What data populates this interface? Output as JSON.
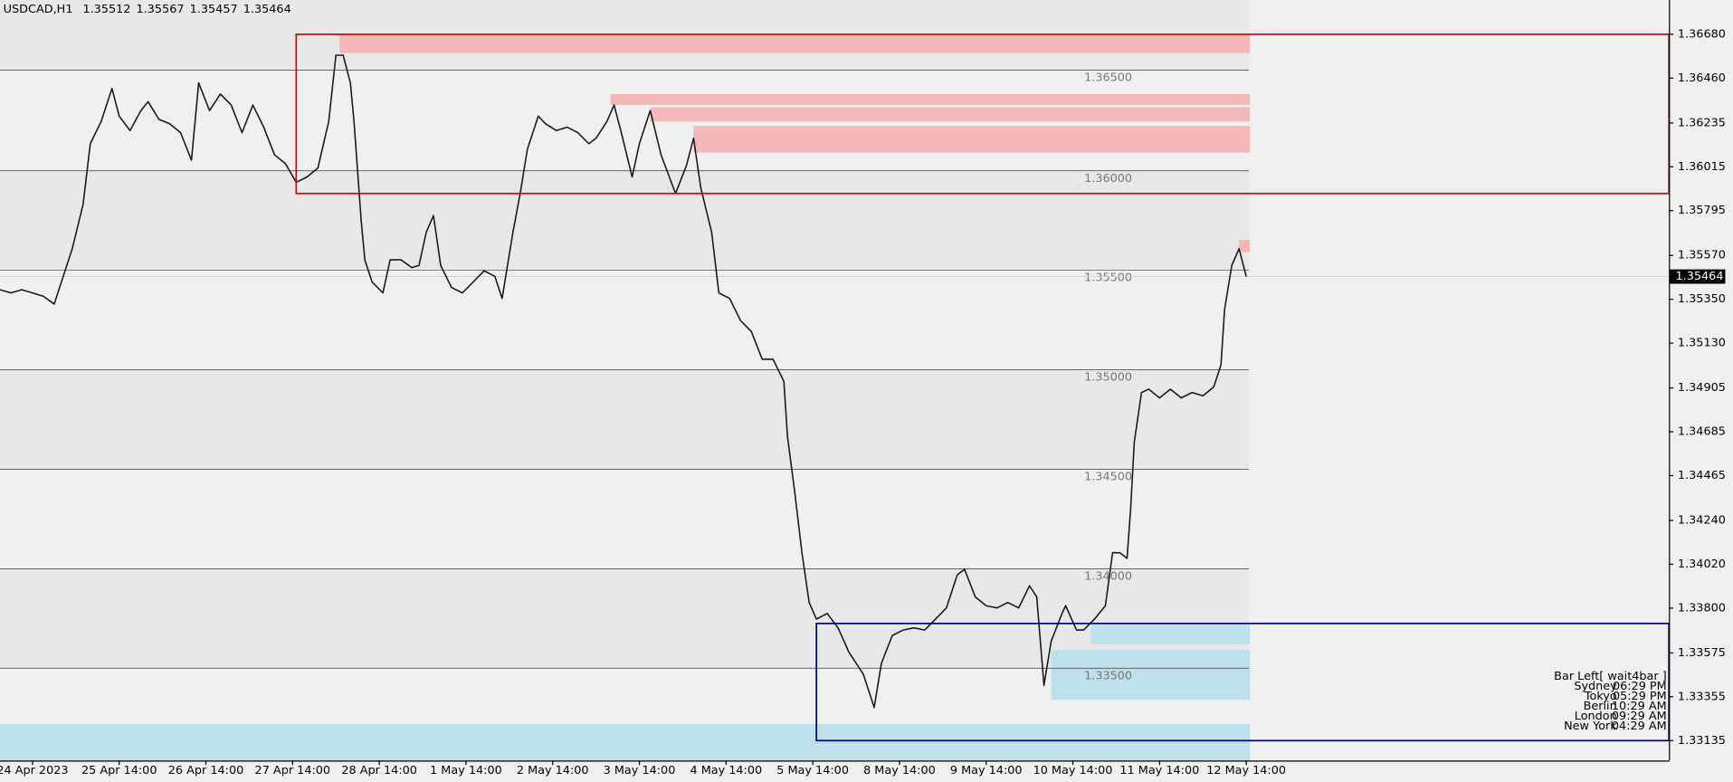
{
  "chart_data": {
    "type": "line",
    "title": "USDCAD,H1",
    "header_values": [
      {
        "value": 1.35512,
        "label": "1.35512"
      },
      {
        "value": 1.35567,
        "label": "1.35567"
      },
      {
        "value": 1.35457,
        "label": "1.35457"
      },
      {
        "value": 1.35464,
        "label": "1.35464"
      }
    ],
    "color": "#1a1a1a",
    "x": [
      0,
      3,
      6,
      9,
      12,
      15,
      17,
      20,
      23,
      25,
      28,
      31,
      33,
      36,
      39,
      41,
      44,
      47,
      50,
      53,
      55,
      58,
      61,
      64,
      67,
      70,
      73,
      76,
      79,
      82,
      85,
      88,
      91,
      93,
      95,
      97,
      98,
      100,
      101,
      103,
      106,
      108,
      111,
      114,
      116,
      118,
      120,
      122,
      125,
      128,
      131,
      134,
      137,
      139,
      142,
      144,
      146,
      149,
      151,
      154,
      157,
      160,
      163,
      165,
      168,
      170,
      172,
      175,
      177,
      180,
      183,
      187,
      190,
      192,
      194,
      197,
      199,
      202,
      205,
      208,
      211,
      214,
      217,
      218,
      220,
      222,
      224,
      226,
      229,
      232,
      235,
      239,
      242,
      244,
      247,
      250,
      253,
      256,
      259,
      262,
      265,
      267,
      270,
      273,
      276,
      279,
      282,
      285,
      287,
      289,
      291,
      294,
      295,
      298,
      300,
      303,
      306,
      308,
      310,
      312,
      313,
      314,
      316,
      318,
      321,
      324,
      327,
      330,
      333,
      336,
      338,
      339,
      341,
      343,
      345
    ],
    "values": [
      1.35398,
      1.35382,
      1.35398,
      1.35382,
      1.35365,
      1.35326,
      1.35437,
      1.35604,
      1.35826,
      1.36131,
      1.36242,
      1.36408,
      1.36269,
      1.36197,
      1.36297,
      1.36342,
      1.36253,
      1.36231,
      1.36186,
      1.36048,
      1.36436,
      1.36297,
      1.3638,
      1.36325,
      1.36186,
      1.36325,
      1.36214,
      1.36075,
      1.36031,
      1.35937,
      1.35964,
      1.36009,
      1.36242,
      1.36575,
      1.36575,
      1.36436,
      1.36242,
      1.35742,
      1.35548,
      1.35437,
      1.35382,
      1.35548,
      1.35548,
      1.35509,
      1.3552,
      1.35687,
      1.3577,
      1.3552,
      1.35409,
      1.35382,
      1.35437,
      1.35493,
      1.35465,
      1.35354,
      1.35687,
      1.35881,
      1.36103,
      1.36269,
      1.36231,
      1.36197,
      1.36214,
      1.36186,
      1.36131,
      1.36158,
      1.36242,
      1.36325,
      1.36186,
      1.35964,
      1.36131,
      1.36297,
      1.36075,
      1.35881,
      1.3602,
      1.36158,
      1.35909,
      1.35687,
      1.35382,
      1.35354,
      1.35243,
      1.35188,
      1.35049,
      1.35049,
      1.34938,
      1.34661,
      1.34383,
      1.34078,
      1.33828,
      1.33745,
      1.33773,
      1.33701,
      1.33579,
      1.33468,
      1.33301,
      1.33523,
      1.33662,
      1.3369,
      1.33701,
      1.3369,
      1.33745,
      1.33801,
      1.33967,
      1.33995,
      1.33856,
      1.33812,
      1.33801,
      1.33828,
      1.33801,
      1.33912,
      1.33856,
      1.33412,
      1.33634,
      1.33773,
      1.33812,
      1.3369,
      1.3369,
      1.33745,
      1.33812,
      1.34078,
      1.34078,
      1.3405,
      1.343,
      1.34633,
      1.34882,
      1.34899,
      1.34855,
      1.34899,
      1.34855,
      1.34882,
      1.34866,
      1.3491,
      1.35021,
      1.35299,
      1.3552,
      1.35604,
      1.35464
    ],
    "xlim": [
      0,
      462
    ],
    "ylim": [
      1.33035,
      1.36852
    ],
    "xticks": [
      {
        "value": 9,
        "label": "24 Apr 2023"
      },
      {
        "value": 33,
        "label": "25 Apr 14:00"
      },
      {
        "value": 57,
        "label": "26 Apr 14:00"
      },
      {
        "value": 81,
        "label": "27 Apr 14:00"
      },
      {
        "value": 105,
        "label": "28 Apr 14:00"
      },
      {
        "value": 129,
        "label": "1 May 14:00"
      },
      {
        "value": 153,
        "label": "2 May 14:00"
      },
      {
        "value": 177,
        "label": "3 May 14:00"
      },
      {
        "value": 201,
        "label": "4 May 14:00"
      },
      {
        "value": 225,
        "label": "5 May 14:00"
      },
      {
        "value": 249,
        "label": "8 May 14:00"
      },
      {
        "value": 273,
        "label": "9 May 14:00"
      },
      {
        "value": 297,
        "label": "10 May 14:00"
      },
      {
        "value": 321,
        "label": "11 May 14:00"
      },
      {
        "value": 345,
        "label": "12 May 14:00"
      }
    ],
    "yticks": [
      {
        "value": 1.3668,
        "label": "1.36680"
      },
      {
        "value": 1.3646,
        "label": "1.36460"
      },
      {
        "value": 1.36235,
        "label": "1.36235"
      },
      {
        "value": 1.36015,
        "label": "1.36015"
      },
      {
        "value": 1.35795,
        "label": "1.35795"
      },
      {
        "value": 1.3557,
        "label": "1.35570"
      },
      {
        "value": 1.3535,
        "label": "1.35350"
      },
      {
        "value": 1.3513,
        "label": "1.35130"
      },
      {
        "value": 1.34905,
        "label": "1.34905"
      },
      {
        "value": 1.34685,
        "label": "1.34685"
      },
      {
        "value": 1.34465,
        "label": "1.34465"
      },
      {
        "value": 1.3424,
        "label": "1.34240"
      },
      {
        "value": 1.3402,
        "label": "1.34020"
      },
      {
        "value": 1.338,
        "label": "1.33800"
      },
      {
        "value": 1.33575,
        "label": "1.33575"
      },
      {
        "value": 1.33355,
        "label": "1.33355"
      },
      {
        "value": 1.33135,
        "label": "1.33135"
      }
    ],
    "levels": [
      {
        "value": 1.365,
        "label": "1.36500"
      },
      {
        "value": 1.36,
        "label": "1.36000"
      },
      {
        "value": 1.355,
        "label": "1.35500"
      },
      {
        "value": 1.35,
        "label": "1.35000"
      },
      {
        "value": 1.345,
        "label": "1.34500"
      },
      {
        "value": 1.34,
        "label": "1.34000"
      },
      {
        "value": 1.335,
        "label": "1.33500"
      }
    ],
    "zones": [
      {
        "x": [
          94,
          346
        ],
        "y": [
          1.36586,
          1.3668
        ],
        "color": "#f4b8b8"
      },
      {
        "x": [
          169,
          346
        ],
        "y": [
          1.36325,
          1.3638
        ],
        "color": "#f4b8b8"
      },
      {
        "x": [
          180,
          346
        ],
        "y": [
          1.36242,
          1.36314
        ],
        "color": "#f4b8b8"
      },
      {
        "x": [
          192,
          346
        ],
        "y": [
          1.36086,
          1.3622
        ],
        "color": "#f4b8b8"
      },
      {
        "x": [
          343,
          346
        ],
        "y": [
          1.35587,
          1.35648
        ],
        "color": "#f4b8b8"
      },
      {
        "x": [
          302,
          346
        ],
        "y": [
          1.33618,
          1.33717
        ],
        "color": "#bde0ea"
      },
      {
        "x": [
          291,
          346
        ],
        "y": [
          1.3334,
          1.3359
        ],
        "color": "#bde0ea"
      },
      {
        "x": [
          0,
          346
        ],
        "y": [
          1.33035,
          1.33218
        ],
        "color": "#bde0ea"
      }
    ],
    "boxes": [
      {
        "x": [
          82,
          462
        ],
        "y": [
          1.35881,
          1.3668
        ],
        "color": "#e00000"
      },
      {
        "x": [
          226,
          462
        ],
        "y": [
          1.33135,
          1.33723
        ],
        "color": "#00008b"
      }
    ],
    "last_price": {
      "value": 1.35464,
      "label": "1.35464"
    },
    "bar_left": "Bar Left[ wait4bar ]",
    "sessions": [
      {
        "city": "Sydney",
        "time": "06:29 PM"
      },
      {
        "city": "Tokyo",
        "time": "05:29 PM"
      },
      {
        "city": "Berlin",
        "time": "10:29 AM"
      },
      {
        "city": "London",
        "time": "09:29 AM"
      },
      {
        "city": "New York",
        "time": "04:29 AM"
      }
    ]
  }
}
